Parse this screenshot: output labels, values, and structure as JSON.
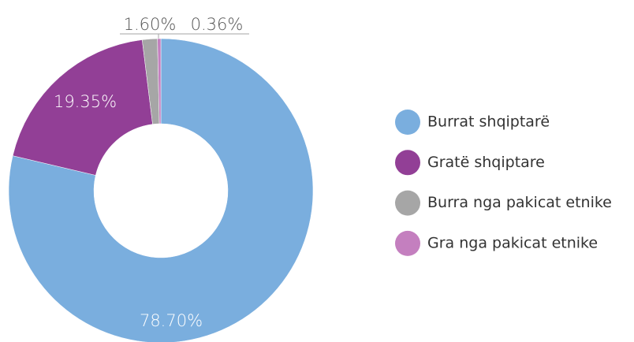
{
  "chart_data": {
    "type": "donut",
    "categories": [
      "Burrat shqiptarë",
      "Gratë shqiptare",
      "Burra nga pakicat etnike",
      "Gra nga pakicat etnike"
    ],
    "values": [
      78.7,
      19.35,
      1.6,
      0.36
    ],
    "value_labels": [
      "78.70%",
      "19.35%",
      "1.60%",
      "0.36%"
    ],
    "colors": [
      "#7aaede",
      "#923f96",
      "#a6a6a6",
      "#c47fbf"
    ],
    "legend": "right"
  }
}
